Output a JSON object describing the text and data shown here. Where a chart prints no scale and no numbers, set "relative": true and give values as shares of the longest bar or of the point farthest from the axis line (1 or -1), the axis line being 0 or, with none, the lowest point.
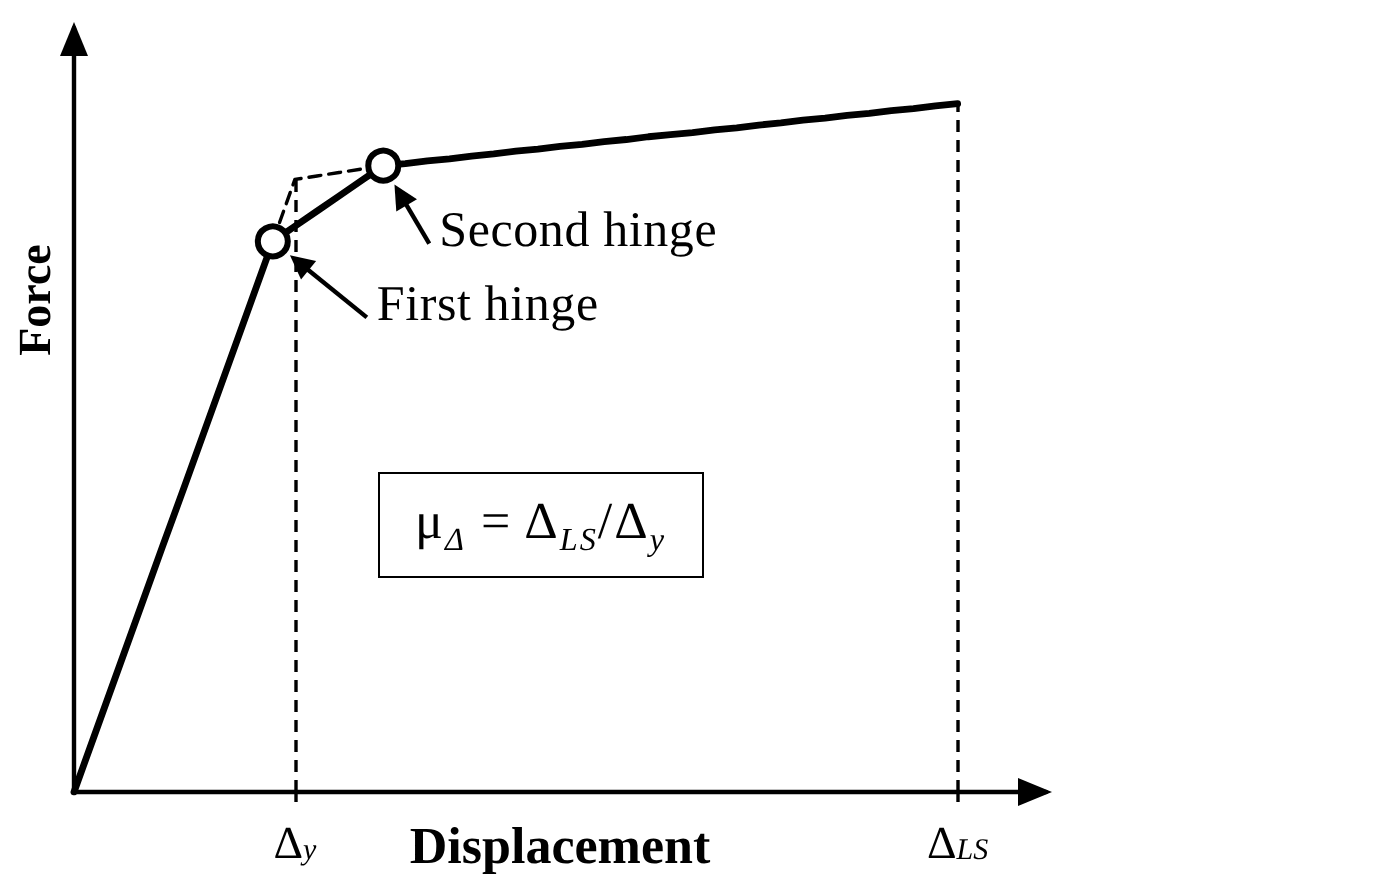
{
  "chart_data": {
    "type": "line",
    "xlabel": "Displacement",
    "ylabel": "Force",
    "relative": true,
    "categories": [
      null,
      null,
      null,
      null,
      null,
      null,
      null,
      null,
      null,
      null,
      "Δ$_{y}$",
      null,
      null,
      null,
      null,
      null,
      null,
      null,
      null,
      null,
      null,
      null,
      null,
      null,
      null,
      null,
      null,
      null,
      null,
      null,
      null,
      null,
      null,
      null,
      null,
      null,
      null,
      null,
      null,
      null,
      "Δ$_{LS}$",
      null,
      null,
      null,
      null
    ],
    "series": [
      {
        "color": "#000000",
        "line_style": "solid",
        "marker": "none",
        "values": [
          0,
          0.089,
          0.178,
          0.267,
          0.356,
          0.444,
          0.533,
          0.622,
          0.711,
          0.8,
          0.822,
          0.844,
          0.866,
          0.888,
          0.91,
          0.913,
          0.917,
          0.92,
          0.924,
          0.927,
          0.931,
          0.934,
          0.938,
          0.941,
          0.945,
          0.948,
          0.952,
          0.955,
          0.958,
          0.962,
          0.965,
          0.969,
          0.972,
          0.976,
          0.979,
          0.983,
          0.986,
          0.99,
          0.993,
          0.997,
          1,
          null,
          null,
          null,
          null
        ]
      },
      {
        "color": "#000000",
        "line_style": "dashed",
        "marker": "none",
        "values": [
          null,
          null,
          null,
          null,
          null,
          null,
          null,
          null,
          null,
          0.8,
          0.89,
          0.895,
          0.9,
          0.905,
          0.91,
          null,
          null,
          null,
          null,
          null,
          null,
          null,
          null,
          null,
          null,
          null,
          null,
          null,
          null,
          null,
          null,
          null,
          null,
          null,
          null,
          null,
          null,
          null,
          null,
          null,
          null,
          null,
          null,
          null,
          null
        ]
      },
      {
        "type": "scatter",
        "color": "#000000",
        "marker": "circle",
        "values": [
          null,
          null,
          null,
          null,
          null,
          null,
          null,
          null,
          null,
          0.8,
          null,
          null,
          null,
          null,
          0.91,
          null,
          null,
          null,
          null,
          null,
          null,
          null,
          null,
          null,
          null,
          null,
          null,
          null,
          null,
          null,
          null,
          null,
          null,
          null,
          null,
          null,
          null,
          null,
          null,
          null,
          null,
          null,
          null,
          null,
          null
        ]
      }
    ],
    "ref_lines": [
      {
        "axis": "x",
        "value": "Δ$_{y}$",
        "color": "#000000",
        "line_style": "dashed"
      },
      {
        "axis": "x",
        "value": "Δ$_{LS}$",
        "color": "#000000",
        "line_style": "dashed"
      }
    ],
    "annotations": [
      "First hinge",
      "Second hinge",
      "μ$_{Δ}$ = Δ$_{LS}$/Δ$_{y}$"
    ]
  }
}
